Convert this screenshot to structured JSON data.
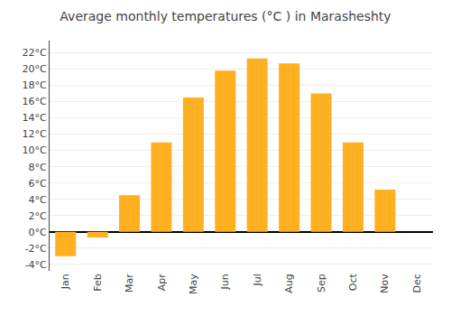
{
  "chart_data": {
    "type": "bar",
    "title": "Average monthly temperatures (°C ) in Marasheshty",
    "categories": [
      "Jan",
      "Feb",
      "Mar",
      "Apr",
      "May",
      "Jun",
      "Jul",
      "Aug",
      "Sep",
      "Oct",
      "Nov",
      "Dec"
    ],
    "values": [
      -3.0,
      -0.7,
      4.5,
      11.0,
      16.5,
      19.8,
      21.3,
      20.7,
      17.0,
      11.0,
      5.2,
      0.0
    ],
    "color": "#FFB020",
    "ylim": [
      -4.8,
      23.5
    ],
    "yticks": [
      {
        "value": -4,
        "label": "-4°C"
      },
      {
        "value": -2,
        "label": "-2°C"
      },
      {
        "value": 0,
        "label": "0°C"
      },
      {
        "value": 2,
        "label": "2°C"
      },
      {
        "value": 4,
        "label": "4°C"
      },
      {
        "value": 6,
        "label": "6°C"
      },
      {
        "value": 8,
        "label": "8°C"
      },
      {
        "value": 10,
        "label": "10°C"
      },
      {
        "value": 12,
        "label": "12°C"
      },
      {
        "value": 14,
        "label": "14°C"
      },
      {
        "value": 16,
        "label": "16°C"
      },
      {
        "value": 18,
        "label": "18°C"
      },
      {
        "value": 20,
        "label": "20°C"
      },
      {
        "value": 22,
        "label": "22°C"
      }
    ],
    "grid": true
  }
}
